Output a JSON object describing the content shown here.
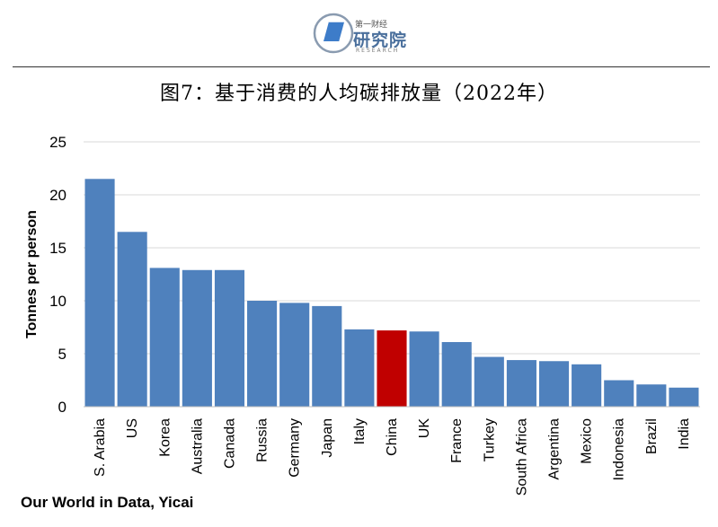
{
  "logo": {
    "top_text": "第一财经",
    "main_text": "研究院",
    "sub_text": "RESEARCH"
  },
  "title": "图7：基于消费的人均碳排放量（2022年）",
  "source": "Our World in Data, Yicai",
  "colors": {
    "bar": "#4f81bd",
    "highlight": "#c00000",
    "grid": "#d9d9d9"
  },
  "chart_data": {
    "type": "bar",
    "title": "图7：基于消费的人均碳排放量（2022年）",
    "xlabel": "",
    "ylabel": "Tonnes per person",
    "ylim": [
      0,
      25
    ],
    "yticks": [
      0,
      5,
      10,
      15,
      20,
      25
    ],
    "grid": true,
    "highlight": "China",
    "categories": [
      "S. Arabia",
      "US",
      "Korea",
      "Australia",
      "Canada",
      "Russia",
      "Germany",
      "Japan",
      "Italy",
      "China",
      "UK",
      "France",
      "Turkey",
      "South Africa",
      "Argentina",
      "Mexico",
      "Indonesia",
      "Brazil",
      "India"
    ],
    "values": [
      21.5,
      16.5,
      13.1,
      12.9,
      12.9,
      10.0,
      9.8,
      9.5,
      7.3,
      7.2,
      7.1,
      6.1,
      4.7,
      4.4,
      4.3,
      4.0,
      2.5,
      2.1,
      1.8
    ]
  }
}
